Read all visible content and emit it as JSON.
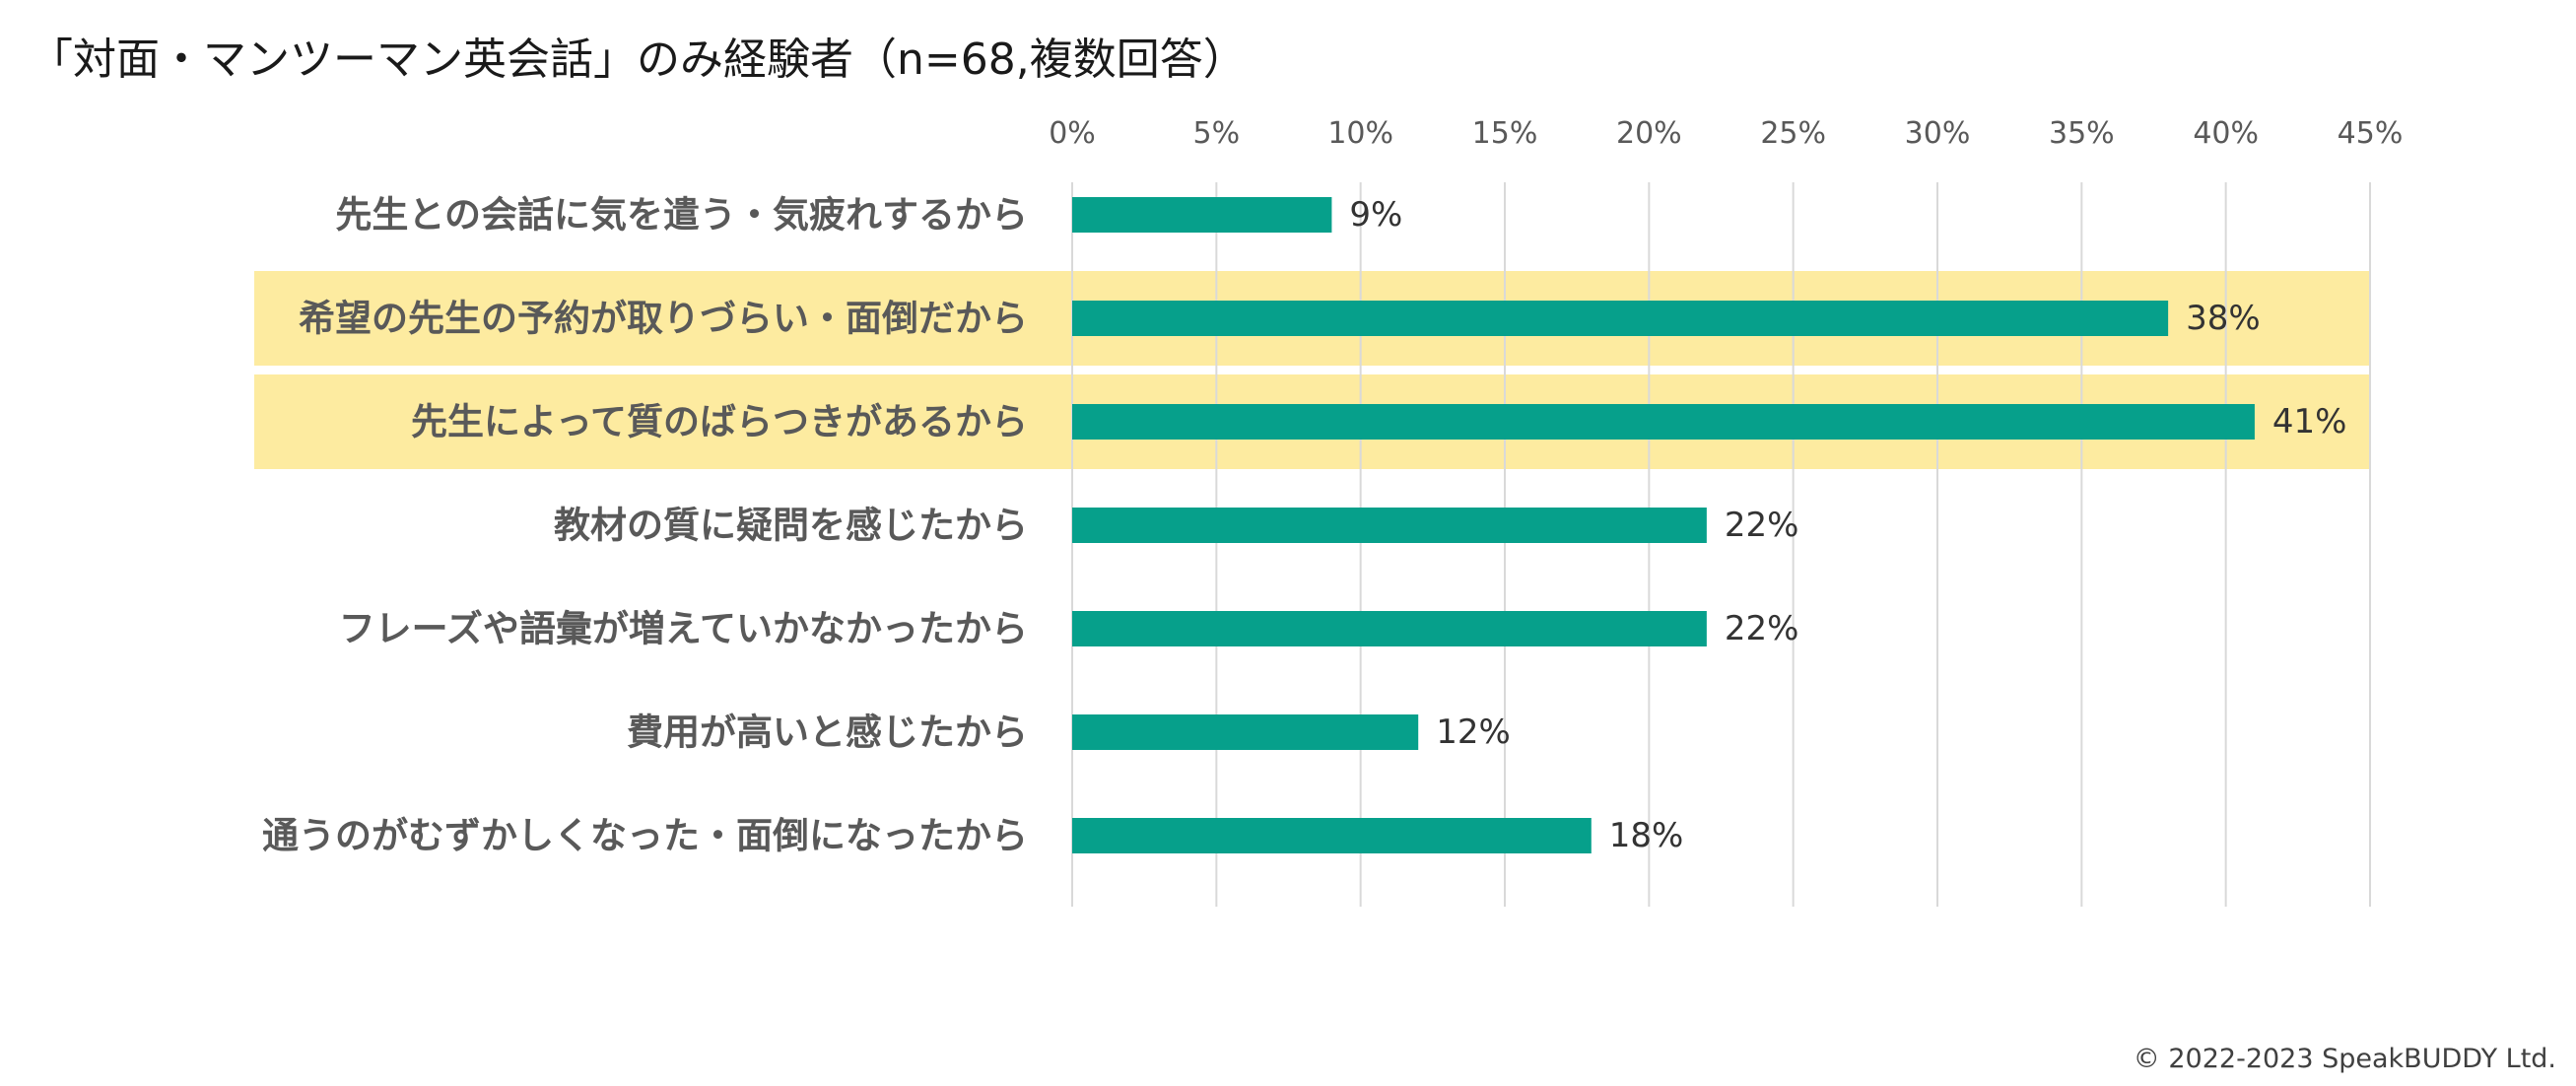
{
  "chart_data": {
    "type": "bar",
    "orientation": "horizontal",
    "title": "「対面・マンツーマン英会話」のみ経験者（n=68,複数回答）",
    "categories": [
      "先生との会話に気を遣う・気疲れするから",
      "希望の先生の予約が取りづらい・面倒だから",
      "先生によって質のばらつきがあるから",
      "教材の質に疑問を感じたから",
      "フレーズや語彙が増えていかなかったから",
      "費用が高いと感じたから",
      "通うのがむずかしくなった・面倒になったから"
    ],
    "values": [
      9,
      38,
      41,
      22,
      22,
      12,
      18
    ],
    "value_labels": [
      "9%",
      "38%",
      "41%",
      "22%",
      "22%",
      "12%",
      "18%"
    ],
    "highlighted": [
      false,
      true,
      true,
      false,
      false,
      false,
      false
    ],
    "xlim": [
      0,
      45
    ],
    "ticks": [
      0,
      5,
      10,
      15,
      20,
      25,
      30,
      35,
      40,
      45
    ],
    "tick_labels": [
      "0%",
      "5%",
      "10%",
      "15%",
      "20%",
      "25%",
      "30%",
      "35%",
      "40%",
      "45%"
    ],
    "axis_position": "top",
    "grid": true,
    "xlabel": "",
    "ylabel": ""
  },
  "colors": {
    "bar": "#06a08b",
    "highlight": "#fdeba0",
    "grid": "#d9d9d9",
    "category_text": "#595959",
    "tick_text": "#595959",
    "value_text": "#333333"
  },
  "footer": {
    "copyright": "© 2022-2023 SpeakBUDDY Ltd."
  }
}
